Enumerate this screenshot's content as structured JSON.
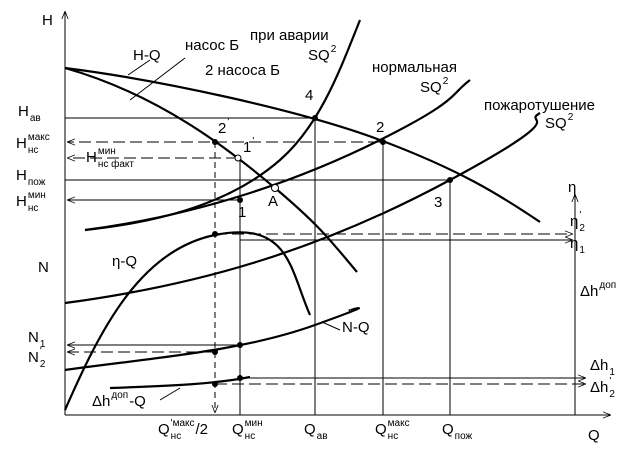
{
  "labels": {
    "axis_h": {
      "main": "H"
    },
    "axis_eta": {
      "main": "η"
    },
    "axis_n": {
      "main": "N"
    },
    "axis_q": {
      "main": "Q"
    },
    "curve_hq": {
      "main": "H-Q"
    },
    "pump_b": {
      "main": "насос Б"
    },
    "two_pumps_b": {
      "main": "2 насоса Б"
    },
    "accident": {
      "main": "при   аварии"
    },
    "accident_sq": {
      "main": "SQ",
      "sup": "2"
    },
    "normal": {
      "main": "нормальная"
    },
    "normal_sq": {
      "main": "SQ",
      "sup": "2"
    },
    "fire": {
      "main": "пожаротушение"
    },
    "fire_sq": {
      "main": "SQ",
      "sup": "2"
    },
    "h_av": {
      "main": "H",
      "sub": "ав"
    },
    "h_ns_max": {
      "main": "H",
      "sup": "макс",
      "sub": "нс"
    },
    "h_ns_min_fact": {
      "main": "H",
      "sup": "мин",
      "sub": "нс факт"
    },
    "h_fire": {
      "main": "H",
      "sub": "пож"
    },
    "h_ns_min": {
      "main": "H",
      "sup": "мин",
      "sub": "нс"
    },
    "pt_4": {
      "main": "4"
    },
    "pt_2": {
      "main": "2"
    },
    "pt_2p": {
      "main": "2",
      "sup": "'"
    },
    "pt_1p": {
      "main": "1",
      "sup": "'"
    },
    "pt_1": {
      "main": "1"
    },
    "pt_a": {
      "main": "A"
    },
    "pt_3": {
      "main": "3"
    },
    "curve_eta": {
      "main": "η-Q"
    },
    "curve_n": {
      "main": "N-Q"
    },
    "curve_dh": {
      "main": "Δh",
      "sup": "доп",
      "tail": "-Q"
    },
    "eta_2p": {
      "main": "η",
      "sup": "'",
      "sub": "2"
    },
    "eta_1": {
      "main": "η",
      "sub": "1"
    },
    "dh_dop": {
      "main": "Δh",
      "sup": "доп"
    },
    "dh_1": {
      "main": "Δh",
      "sub": "1"
    },
    "dh_2p": {
      "main": "Δh",
      "sup": "'",
      "sub": "2"
    },
    "n_1": {
      "main": "N",
      "sub": "1"
    },
    "n_2p": {
      "main": "N",
      "sup": "'",
      "sub": "2"
    },
    "q_half": {
      "main": "Q",
      "sup": "'макс",
      "sub": "нс",
      "tail": "/2"
    },
    "q_min": {
      "main": "Q",
      "sup": "мин",
      "sub": "нс"
    },
    "q_av": {
      "main": "Q",
      "sub": "ав"
    },
    "q_max": {
      "main": "Q",
      "sup": "макс",
      "sub": "нс"
    },
    "q_fire": {
      "main": "Q",
      "sub": "пож"
    }
  }
}
